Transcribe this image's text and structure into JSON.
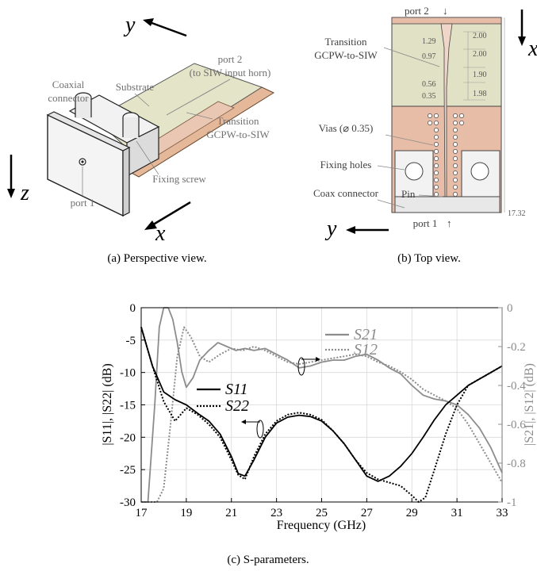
{
  "panel_a": {
    "caption": "(a) Perspective view.",
    "axis_y": "y",
    "axis_z": "z",
    "axis_x": "x",
    "labels": {
      "coaxial_connector_1": "Coaxial",
      "coaxial_connector_2": "connector",
      "substrate": "Substrate",
      "port2_1": "port 2",
      "port2_2": "(to SIW input horn)",
      "transition_1": "Transition",
      "transition_2": "GCPW-to-SIW",
      "fixing_screw": "Fixing screw",
      "port1": "port 1"
    }
  },
  "panel_b": {
    "caption": "(b) Top view.",
    "axis_x": "x",
    "axis_y": "y",
    "labels": {
      "port2": "port 2",
      "transition_1": "Transition",
      "transition_2": "GCPW-to-SIW",
      "vias": "Vias (⌀ 0.35)",
      "fixing_holes": "Fixing holes",
      "coax_connector": "Coax connector",
      "pin": "Pin",
      "port1": "port 1"
    },
    "dims_left": [
      "1.29",
      "0.97",
      "0.56",
      "0.35"
    ],
    "dims_right": [
      "2.00",
      "2.00",
      "1.90",
      "1.98"
    ],
    "dim_total": "17.32"
  },
  "panel_c": {
    "caption": "(c) S-parameters."
  },
  "chart_data": {
    "type": "line",
    "xlabel": "Frequency (GHz)",
    "ylabel": "|S11|, |S22| (dB)",
    "ylabel_right": "|S21|, |S12| (dB)",
    "xlim": [
      17,
      33
    ],
    "ylim": [
      -30,
      0
    ],
    "ylim_right": [
      -1,
      0
    ],
    "x_ticks": [
      "17",
      "19",
      "21",
      "23",
      "25",
      "27",
      "29",
      "31",
      "33"
    ],
    "y_ticks": [
      "0",
      "-5",
      "-10",
      "-15",
      "-20",
      "-25",
      "-30"
    ],
    "y_ticks_right": [
      "0",
      "-0.2",
      "-0.4",
      "-0.6",
      "-0.8",
      "-1"
    ],
    "legend": {
      "s21": "S21",
      "s12": "S12",
      "s11": "S11",
      "s22": "S22"
    },
    "colors": {
      "s11": "#000000",
      "s22": "#000000",
      "s21": "#8c8c8c",
      "s12": "#8c8c8c"
    },
    "series": [
      {
        "name": "S11",
        "axis": "left",
        "style": "solid",
        "x": [
          17,
          17.5,
          18,
          18.5,
          19,
          19.5,
          20,
          20.5,
          21,
          21.3,
          21.6,
          22,
          22.5,
          23,
          23.5,
          24,
          24.5,
          25,
          25.5,
          26,
          26.5,
          27,
          27.5,
          28,
          28.5,
          29,
          29.5,
          30,
          30.5,
          31,
          31.5,
          32,
          32.5,
          33
        ],
        "y": [
          -3,
          -9,
          -13,
          -14.2,
          -15,
          -16.3,
          -17.5,
          -19.5,
          -23,
          -25.6,
          -26,
          -23.5,
          -20,
          -17.8,
          -16.9,
          -16.6,
          -16.8,
          -17.5,
          -19,
          -21,
          -23.5,
          -26,
          -26.8,
          -26,
          -24.5,
          -22.5,
          -20,
          -17.3,
          -15,
          -13.5,
          -12,
          -11,
          -10,
          -9
        ]
      },
      {
        "name": "S22",
        "axis": "left",
        "style": "dotted",
        "x": [
          17,
          17.5,
          18,
          18.5,
          19,
          19.5,
          20,
          20.5,
          21,
          21.3,
          21.6,
          22,
          22.5,
          23,
          23.5,
          24,
          24.5,
          25,
          25.5,
          26,
          26.5,
          27,
          27.5,
          28,
          28.5,
          29,
          29.3,
          29.6,
          30,
          30.5,
          31,
          31.5,
          32,
          32.5,
          33
        ],
        "y": [
          -3,
          -9,
          -14.5,
          -17.5,
          -15.5,
          -16.5,
          -18,
          -20,
          -23.5,
          -25.8,
          -26.5,
          -23,
          -19.5,
          -17.5,
          -16.5,
          -16.2,
          -16.5,
          -17.3,
          -19,
          -21,
          -23.5,
          -25.5,
          -26.5,
          -27,
          -27.5,
          -29,
          -30,
          -29.3,
          -25,
          -19.5,
          -15,
          -12,
          -11,
          -10,
          -9
        ]
      },
      {
        "name": "S21",
        "axis": "right",
        "style": "solid",
        "x": [
          17,
          17.3,
          17.6,
          17.8,
          18,
          18.2,
          18.4,
          18.6,
          18.8,
          19,
          19.3,
          19.6,
          20,
          20.4,
          20.8,
          21.2,
          21.6,
          22,
          22.5,
          23,
          23.5,
          24,
          24.5,
          25,
          25.5,
          26,
          26.5,
          27,
          27.5,
          28,
          28.5,
          29,
          29.5,
          30,
          30.5,
          31,
          31.5,
          32,
          32.5,
          33
        ],
        "y": [
          -1,
          -1,
          -0.5,
          -0.1,
          0,
          0,
          -0.06,
          -0.18,
          -0.33,
          -0.41,
          -0.36,
          -0.27,
          -0.22,
          -0.18,
          -0.2,
          -0.22,
          -0.21,
          -0.22,
          -0.21,
          -0.24,
          -0.27,
          -0.31,
          -0.3,
          -0.28,
          -0.27,
          -0.27,
          -0.25,
          -0.24,
          -0.27,
          -0.31,
          -0.34,
          -0.4,
          -0.45,
          -0.47,
          -0.48,
          -0.5,
          -0.55,
          -0.62,
          -0.72,
          -0.85
        ]
      },
      {
        "name": "S12",
        "axis": "right",
        "style": "dotted",
        "x": [
          17,
          17.4,
          17.7,
          18,
          18.3,
          18.6,
          18.9,
          19.2,
          19.6,
          20,
          20.5,
          21,
          21.5,
          22,
          22.5,
          23,
          23.5,
          24,
          24.5,
          25,
          25.5,
          26,
          26.5,
          27,
          27.5,
          28,
          28.5,
          29,
          29.5,
          30,
          30.5,
          31,
          31.5,
          32,
          32.5,
          33
        ],
        "y": [
          -1,
          -1,
          -1,
          -0.93,
          -0.6,
          -0.25,
          -0.1,
          -0.15,
          -0.25,
          -0.28,
          -0.24,
          -0.21,
          -0.22,
          -0.2,
          -0.22,
          -0.25,
          -0.28,
          -0.29,
          -0.28,
          -0.27,
          -0.26,
          -0.25,
          -0.24,
          -0.25,
          -0.28,
          -0.3,
          -0.33,
          -0.37,
          -0.42,
          -0.45,
          -0.48,
          -0.52,
          -0.6,
          -0.7,
          -0.8,
          -0.9
        ]
      }
    ]
  }
}
